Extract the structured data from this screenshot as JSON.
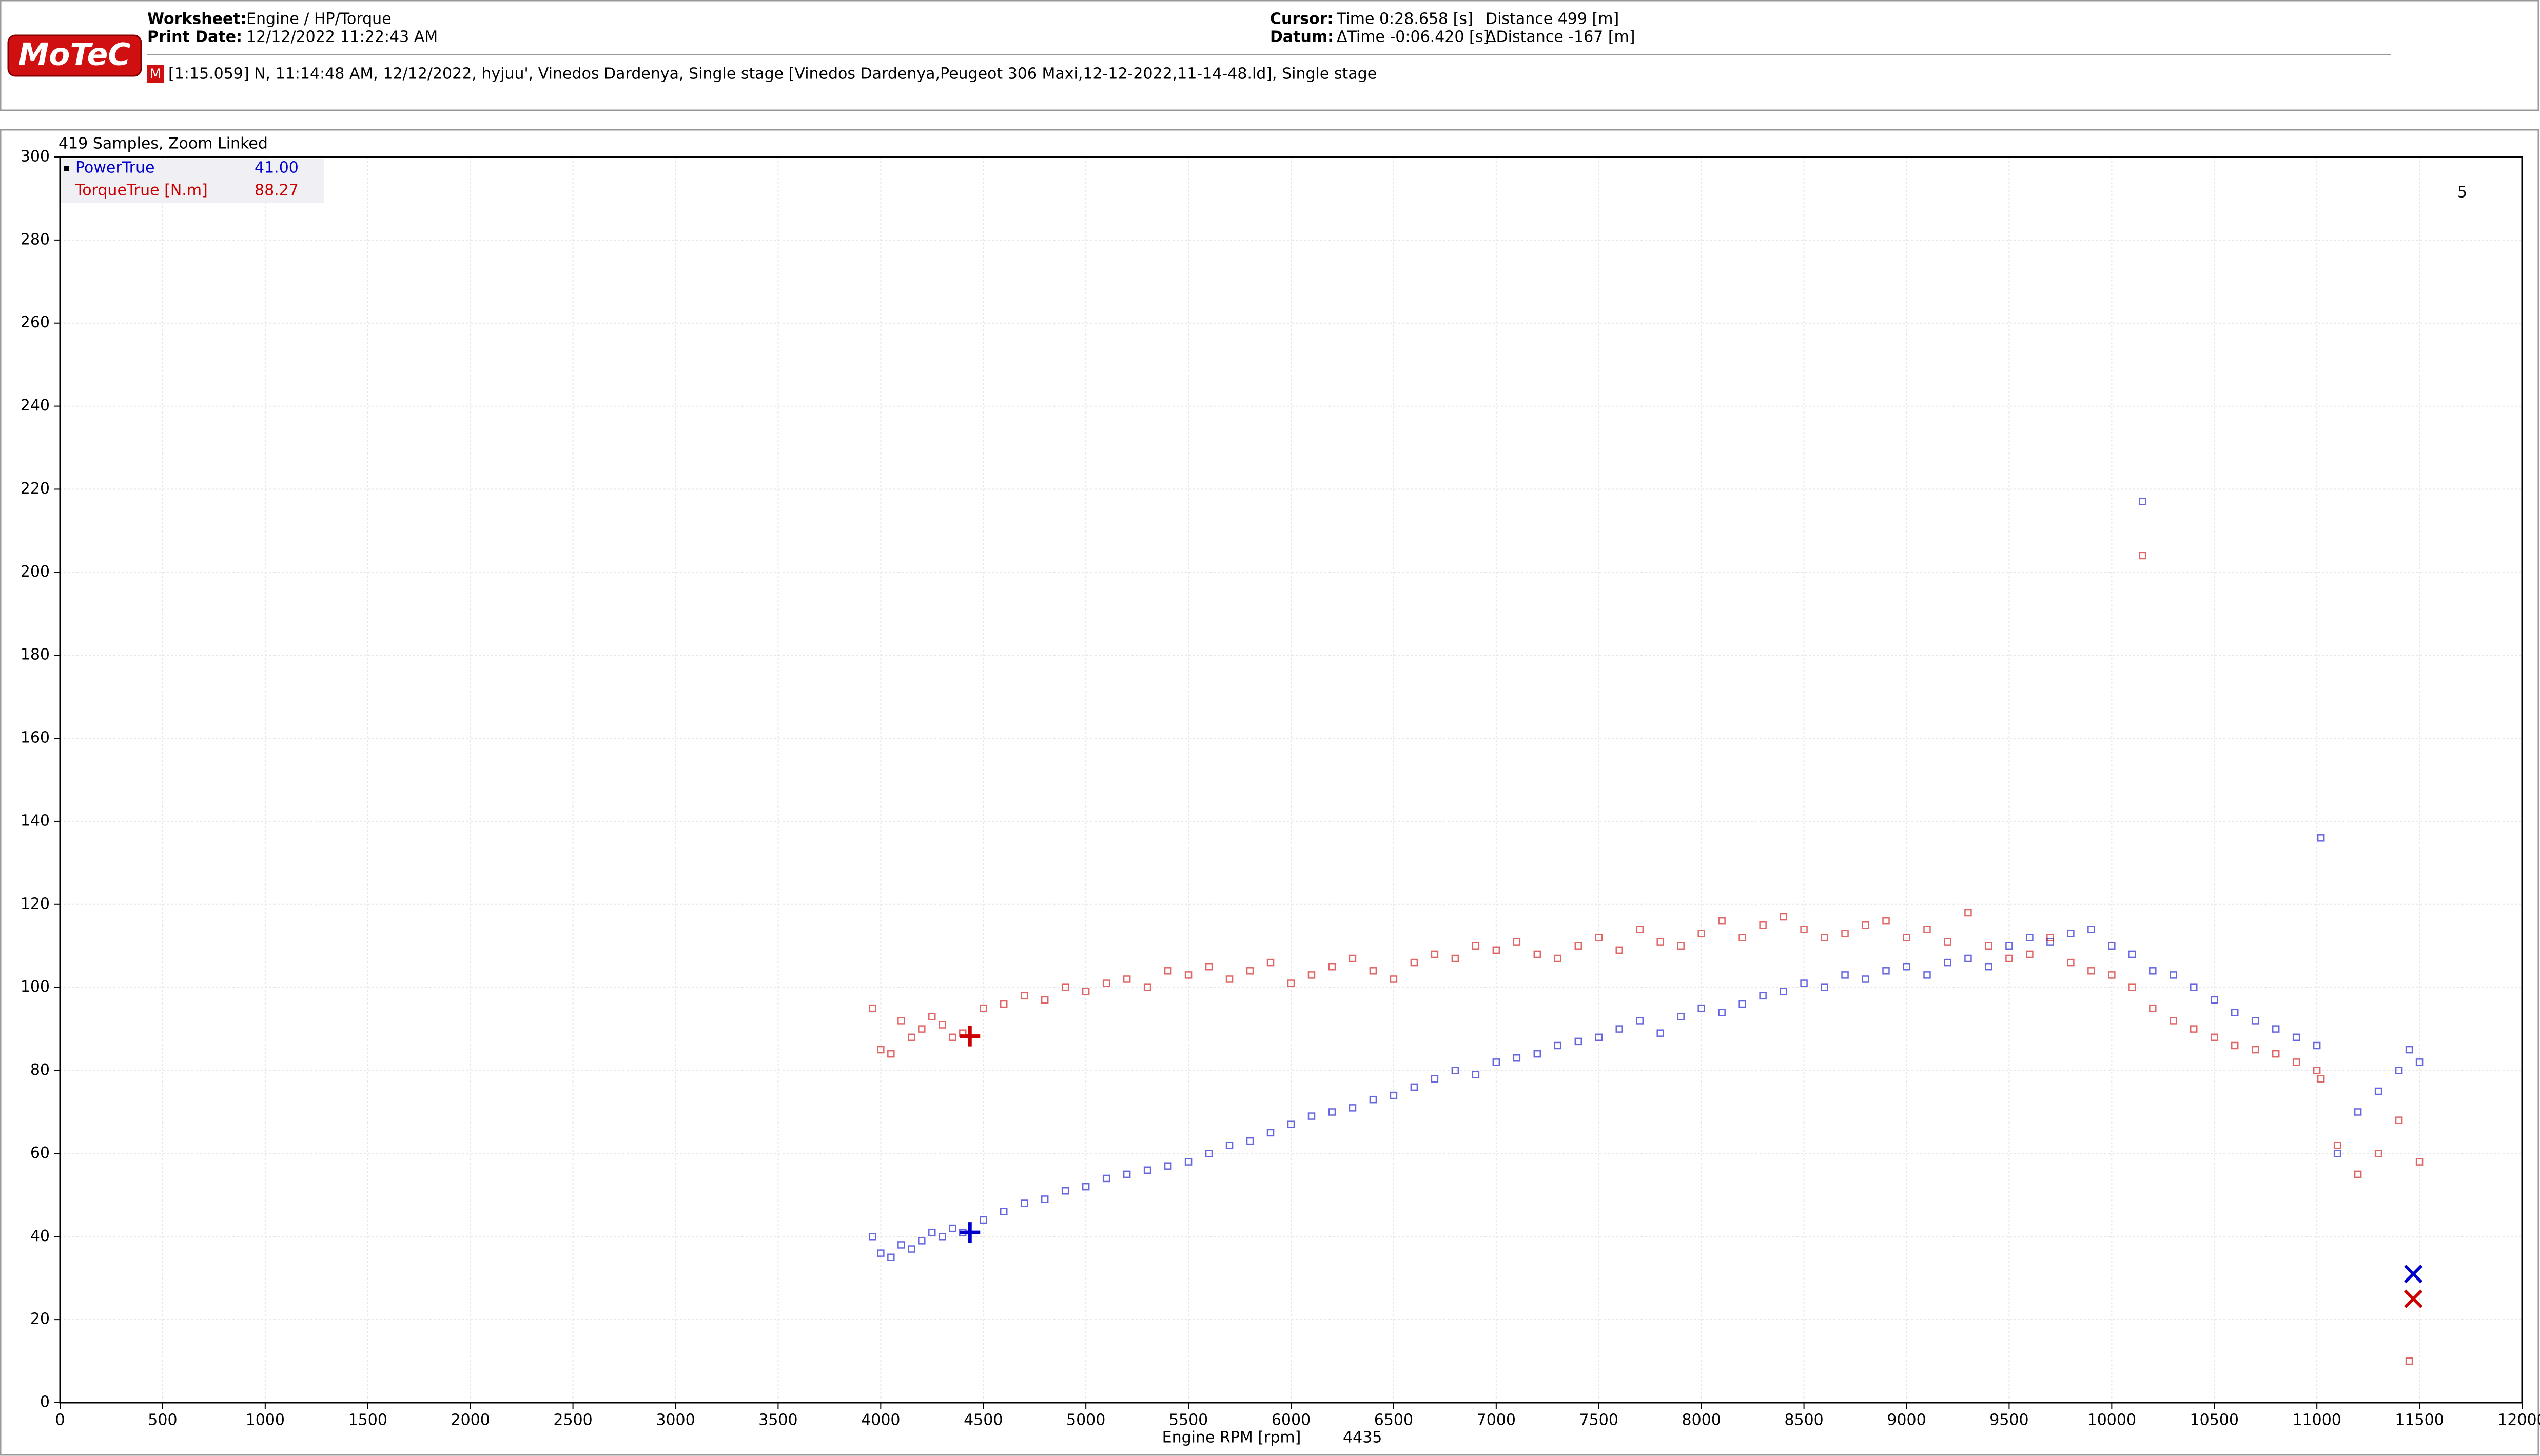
{
  "header": {
    "worksheet_label": "Worksheet:",
    "worksheet": "Engine / HP/Torque",
    "print_date_label": "Print Date:",
    "print_date": "12/12/2022 11:22:43 AM",
    "cursor_label": "Cursor:",
    "cursor_time": "Time  0:28.658 [s]",
    "cursor_distance": "Distance  499 [m]",
    "datum_label": "Datum:",
    "datum_time": "ΔTime  -0:06.420 [s]",
    "datum_distance": "ΔDistance  -167 [m]",
    "logo": "MoTeC",
    "file_icon": "M",
    "file": "[1:15.059] N, 11:14:48 AM, 12/12/2022, hyjuu', Vinedos Dardenya, Single stage [Vinedos Dardenya,Peugeot 306 Maxi,12-12-2022,11-14-48.ld], Single stage"
  },
  "chart_data": {
    "type": "scatter",
    "samples": "419 Samples, Zoom Linked",
    "corner_label": "5",
    "x_label": "Engine RPM [rpm]",
    "cursor_x": 4435,
    "datum_x": 11470,
    "xlim": [
      0,
      12000
    ],
    "xticks": [
      0,
      500,
      1000,
      1500,
      2000,
      2500,
      3000,
      3500,
      4000,
      4500,
      5000,
      5500,
      6000,
      6500,
      7000,
      7500,
      8000,
      8500,
      9000,
      9500,
      10000,
      10500,
      11000,
      11500,
      12000
    ],
    "ylim": [
      0,
      300
    ],
    "yticks": [
      0,
      20,
      40,
      60,
      80,
      100,
      120,
      140,
      160,
      180,
      200,
      220,
      240,
      260,
      280,
      300
    ],
    "grid": true,
    "x": [
      3960,
      4000,
      4050,
      4100,
      4150,
      4200,
      4250,
      4300,
      4350,
      4400,
      4500,
      4600,
      4700,
      4800,
      4900,
      5000,
      5100,
      5200,
      5300,
      5400,
      5500,
      5600,
      5700,
      5800,
      5900,
      6000,
      6100,
      6200,
      6300,
      6400,
      6500,
      6600,
      6700,
      6800,
      6900,
      7000,
      7100,
      7200,
      7300,
      7400,
      7500,
      7600,
      7700,
      7800,
      7900,
      8000,
      8100,
      8200,
      8300,
      8400,
      8500,
      8600,
      8700,
      8800,
      8900,
      9000,
      9100,
      9200,
      9300,
      9400,
      9500,
      9600,
      9700,
      9800,
      9900,
      10000,
      10100,
      10150,
      10200,
      10300,
      10400,
      10500,
      10600,
      10700,
      10800,
      10900,
      11000,
      11020,
      11100,
      11200,
      11300,
      11400,
      11450,
      11500
    ],
    "series": [
      {
        "name": "PowerTrue",
        "color": "#0000cc",
        "cursor_value": {
          "value": 41,
          "label": "41.00"
        },
        "datum_value": 31,
        "values": [
          40,
          36,
          35,
          38,
          37,
          39,
          41,
          40,
          42,
          41,
          44,
          46,
          48,
          49,
          51,
          52,
          54,
          55,
          56,
          57,
          58,
          60,
          62,
          63,
          65,
          67,
          69,
          70,
          71,
          73,
          74,
          76,
          78,
          80,
          79,
          82,
          83,
          84,
          86,
          87,
          88,
          90,
          92,
          89,
          93,
          95,
          94,
          96,
          98,
          99,
          101,
          100,
          103,
          102,
          104,
          105,
          103,
          106,
          107,
          105,
          110,
          112,
          111,
          113,
          114,
          110,
          108,
          217,
          104,
          103,
          100,
          97,
          94,
          92,
          90,
          88,
          86,
          136,
          60,
          70,
          75,
          80,
          85,
          82
        ]
      },
      {
        "name": "TorqueTrue [N.m]",
        "color": "#cc0000",
        "cursor_value": 88.27,
        "datum_value": 25,
        "values": [
          95,
          85,
          84,
          92,
          88,
          90,
          93,
          91,
          88,
          89,
          95,
          96,
          98,
          97,
          100,
          99,
          101,
          102,
          100,
          104,
          103,
          105,
          102,
          104,
          106,
          101,
          103,
          105,
          107,
          104,
          102,
          106,
          108,
          107,
          110,
          109,
          111,
          108,
          107,
          110,
          112,
          109,
          114,
          111,
          110,
          113,
          116,
          112,
          115,
          117,
          114,
          112,
          113,
          115,
          116,
          112,
          114,
          111,
          118,
          110,
          107,
          108,
          112,
          106,
          104,
          103,
          100,
          204,
          95,
          92,
          90,
          88,
          86,
          85,
          84,
          82,
          80,
          78,
          62,
          55,
          60,
          68,
          10,
          58
        ]
      }
    ]
  }
}
